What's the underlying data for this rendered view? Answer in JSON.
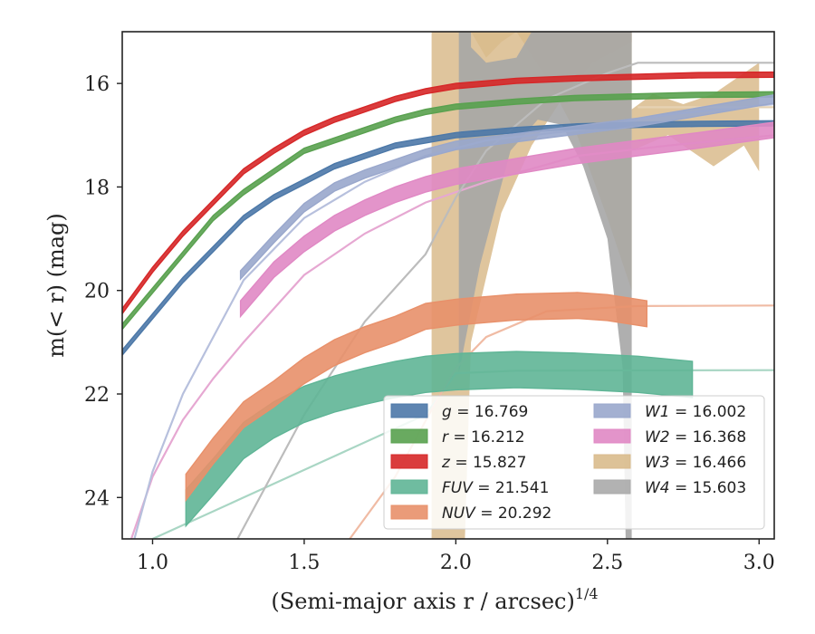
{
  "chart_data": {
    "type": "line",
    "title": "",
    "xlabel": "(Semi-major axis r / arcsec)",
    "xlabel_superscript": "1/4",
    "ylabel": "m(< r) (mag)",
    "xlim": [
      0.9,
      3.05
    ],
    "ylim": [
      24.8,
      15.0
    ],
    "y_inverted": true,
    "grid": false,
    "legend_position": "lower-right",
    "xticks": [
      "1.0",
      "1.5",
      "2.0",
      "2.5",
      "3.0"
    ],
    "yticks": [
      "16",
      "18",
      "20",
      "22",
      "24"
    ],
    "series": [
      {
        "name": "g",
        "legend": "g = 16.769",
        "color": "#4c78a8",
        "band": 0.05,
        "points": [
          [
            0.9,
            21.2
          ],
          [
            1.0,
            20.5
          ],
          [
            1.1,
            19.8
          ],
          [
            1.2,
            19.2
          ],
          [
            1.3,
            18.6
          ],
          [
            1.4,
            18.2
          ],
          [
            1.5,
            17.9
          ],
          [
            1.6,
            17.6
          ],
          [
            1.7,
            17.4
          ],
          [
            1.8,
            17.2
          ],
          [
            1.9,
            17.1
          ],
          [
            2.0,
            17.0
          ],
          [
            2.2,
            16.9
          ],
          [
            2.4,
            16.83
          ],
          [
            2.6,
            16.8
          ],
          [
            2.8,
            16.78
          ],
          [
            3.05,
            16.77
          ]
        ]
      },
      {
        "name": "r",
        "legend": "r = 16.212",
        "color": "#59a14f",
        "band": 0.05,
        "points": [
          [
            0.9,
            20.7
          ],
          [
            1.0,
            20.0
          ],
          [
            1.1,
            19.3
          ],
          [
            1.2,
            18.6
          ],
          [
            1.3,
            18.1
          ],
          [
            1.4,
            17.7
          ],
          [
            1.5,
            17.3
          ],
          [
            1.6,
            17.1
          ],
          [
            1.7,
            16.9
          ],
          [
            1.8,
            16.7
          ],
          [
            1.9,
            16.55
          ],
          [
            2.0,
            16.45
          ],
          [
            2.2,
            16.35
          ],
          [
            2.4,
            16.28
          ],
          [
            2.6,
            16.25
          ],
          [
            2.8,
            16.22
          ],
          [
            3.05,
            16.21
          ]
        ]
      },
      {
        "name": "z",
        "legend": "z = 15.827",
        "color": "#d62728",
        "band": 0.05,
        "points": [
          [
            0.9,
            20.4
          ],
          [
            1.0,
            19.6
          ],
          [
            1.1,
            18.9
          ],
          [
            1.2,
            18.3
          ],
          [
            1.3,
            17.7
          ],
          [
            1.4,
            17.3
          ],
          [
            1.5,
            16.95
          ],
          [
            1.6,
            16.7
          ],
          [
            1.7,
            16.5
          ],
          [
            1.8,
            16.3
          ],
          [
            1.9,
            16.15
          ],
          [
            2.0,
            16.05
          ],
          [
            2.2,
            15.95
          ],
          [
            2.4,
            15.9
          ],
          [
            2.6,
            15.87
          ],
          [
            2.8,
            15.84
          ],
          [
            3.05,
            15.83
          ]
        ]
      },
      {
        "name": "FUV",
        "legend": "FUV = 21.541",
        "color": "#5fb596",
        "band": 0.35,
        "points": [
          [
            1.11,
            24.2
          ],
          [
            1.2,
            23.6
          ],
          [
            1.3,
            22.9
          ],
          [
            1.4,
            22.5
          ],
          [
            1.5,
            22.2
          ],
          [
            1.6,
            22.0
          ],
          [
            1.7,
            21.85
          ],
          [
            1.8,
            21.72
          ],
          [
            1.9,
            21.62
          ],
          [
            2.0,
            21.57
          ],
          [
            2.2,
            21.53
          ],
          [
            2.4,
            21.56
          ],
          [
            2.6,
            21.62
          ],
          [
            2.78,
            21.72
          ]
        ]
      },
      {
        "name": "NUV",
        "legend": "NUV = 20.292",
        "color": "#e8906a",
        "band": 0.25,
        "points": [
          [
            1.11,
            23.8
          ],
          [
            1.2,
            23.1
          ],
          [
            1.3,
            22.4
          ],
          [
            1.4,
            22.0
          ],
          [
            1.5,
            21.55
          ],
          [
            1.6,
            21.2
          ],
          [
            1.7,
            20.95
          ],
          [
            1.8,
            20.75
          ],
          [
            1.9,
            20.5
          ],
          [
            2.0,
            20.42
          ],
          [
            2.2,
            20.32
          ],
          [
            2.4,
            20.29
          ],
          [
            2.5,
            20.33
          ],
          [
            2.63,
            20.45
          ]
        ]
      },
      {
        "name": "W1",
        "legend": "W1 = 16.002",
        "color": "#99a7cc",
        "band": 0.08,
        "points": [
          [
            1.29,
            19.7
          ],
          [
            1.4,
            19.0
          ],
          [
            1.5,
            18.4
          ],
          [
            1.6,
            18.0
          ],
          [
            1.7,
            17.75
          ],
          [
            1.8,
            17.55
          ],
          [
            1.9,
            17.35
          ],
          [
            2.0,
            17.2
          ],
          [
            2.2,
            17.05
          ],
          [
            2.4,
            16.9
          ],
          [
            2.6,
            16.75
          ],
          [
            2.8,
            16.55
          ],
          [
            3.05,
            16.3
          ]
        ]
      },
      {
        "name": "W2",
        "legend": "W2 = 16.368",
        "color": "#e088c4",
        "band": 0.15,
        "points": [
          [
            1.29,
            20.35
          ],
          [
            1.4,
            19.6
          ],
          [
            1.5,
            19.1
          ],
          [
            1.6,
            18.7
          ],
          [
            1.7,
            18.4
          ],
          [
            1.8,
            18.15
          ],
          [
            1.9,
            17.95
          ],
          [
            2.0,
            17.8
          ],
          [
            2.2,
            17.6
          ],
          [
            2.4,
            17.4
          ],
          [
            2.6,
            17.25
          ],
          [
            2.8,
            17.1
          ],
          [
            3.05,
            16.9
          ]
        ]
      },
      {
        "name": "W3",
        "legend": "W3 = 16.466",
        "color": "#d9bb8c",
        "band": 0,
        "points": []
      },
      {
        "name": "W4",
        "legend": "W4 = 15.603",
        "color": "#aaaaaa",
        "band": 0,
        "points": []
      }
    ]
  }
}
